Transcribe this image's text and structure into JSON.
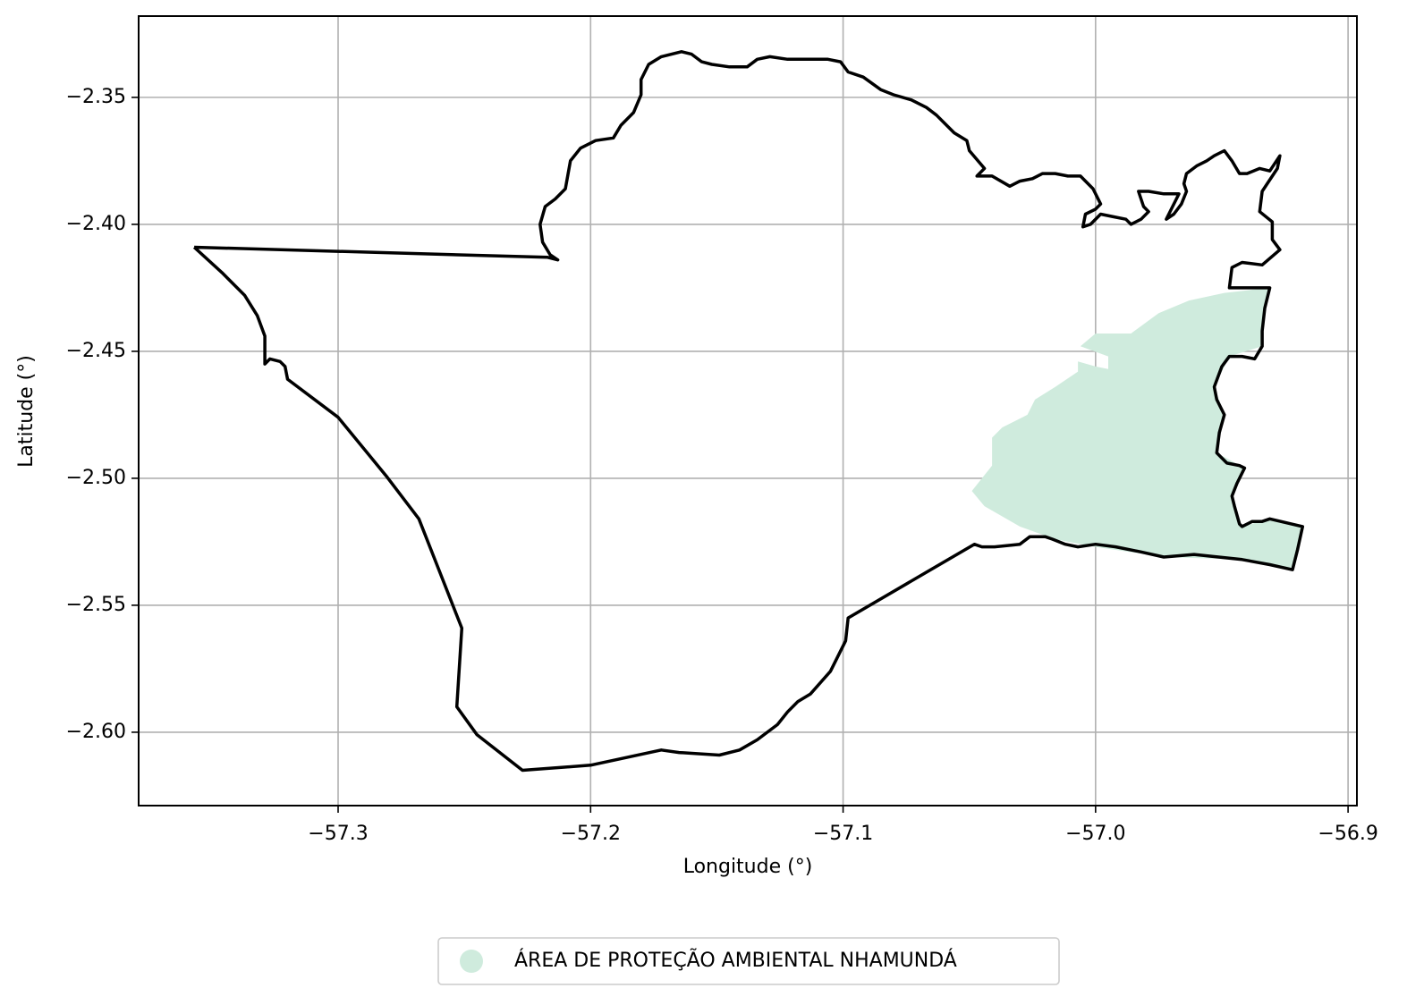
{
  "chart_data": {
    "type": "map",
    "xlabel": "Longitude (°)",
    "ylabel": "Latitude (°)",
    "xlim": [
      -57.379,
      -56.8965
    ],
    "ylim": [
      -2.6289,
      -2.318
    ],
    "xticks": [
      {
        "value": -57.3,
        "label": "−57.3"
      },
      {
        "value": -57.2,
        "label": "−57.2"
      },
      {
        "value": -57.1,
        "label": "−57.1"
      },
      {
        "value": -57.0,
        "label": "−57.0"
      },
      {
        "value": -56.9,
        "label": "−56.9"
      }
    ],
    "yticks": [
      {
        "value": -2.35,
        "label": "−2.35"
      },
      {
        "value": -2.4,
        "label": "−2.40"
      },
      {
        "value": -2.45,
        "label": "−2.45"
      },
      {
        "value": -2.5,
        "label": "−2.50"
      },
      {
        "value": -2.55,
        "label": "−2.55"
      },
      {
        "value": -2.6,
        "label": "−2.60"
      }
    ],
    "grid": true,
    "legend": "lower center",
    "layers": [
      {
        "name": "ÁREA DE PROTEÇÃO AMBIENTAL NHAMUNDÁ",
        "color": "#cfebdd",
        "fill": true,
        "x": [
          -56.949,
          -56.963,
          -56.975,
          -56.986,
          -57.0,
          -57.006,
          -56.995,
          -56.995,
          -57.0,
          -57.007,
          -57.007,
          -57.016,
          -57.024,
          -57.027,
          -57.037,
          -57.041,
          -57.041,
          -57.049,
          -57.044,
          -57.03,
          -57.016,
          -57.0,
          -56.973,
          -56.942,
          -56.922,
          -56.92,
          -56.918,
          -56.931,
          -56.942,
          -56.945,
          -56.946,
          -56.941,
          -56.952,
          -56.949,
          -56.953,
          -56.947,
          -56.934,
          -56.933,
          -56.931
        ],
        "y": [
          -2.427,
          -2.43,
          -2.435,
          -2.443,
          -2.443,
          -2.448,
          -2.452,
          -2.457,
          -2.456,
          -2.454,
          -2.458,
          -2.464,
          -2.469,
          -2.475,
          -2.48,
          -2.484,
          -2.495,
          -2.505,
          -2.511,
          -2.519,
          -2.524,
          -2.527,
          -2.531,
          -2.532,
          -2.536,
          -2.528,
          -2.519,
          -2.516,
          -2.519,
          -2.511,
          -2.507,
          -2.496,
          -2.49,
          -2.475,
          -2.464,
          -2.452,
          -2.448,
          -2.433,
          -2.425
        ]
      },
      {
        "color": "#000000",
        "fill": false,
        "x": [
          -57.357,
          -57.346,
          -57.337,
          -57.332,
          -57.329,
          -57.329,
          -57.327,
          -57.323,
          -57.321,
          -57.32,
          -57.3,
          -57.281,
          -57.268,
          -57.251,
          -57.253,
          -57.245,
          -57.227,
          -57.2,
          -57.172,
          -57.165,
          -57.149,
          -57.141,
          -57.134,
          -57.126,
          -57.122,
          -57.118,
          -57.113,
          -57.105,
          -57.099,
          -57.098,
          -57.048,
          -57.045,
          -57.04,
          -57.03,
          -57.026,
          -57.02,
          -57.017,
          -57.012,
          -57.007,
          -57.0,
          -56.992,
          -56.982,
          -56.973,
          -56.961,
          -56.942,
          -56.931,
          -56.922,
          -56.92,
          -56.918,
          -56.931,
          -56.934,
          -56.938,
          -56.942,
          -56.943,
          -56.945,
          -56.946,
          -56.944,
          -56.941,
          -56.943,
          -56.948,
          -56.952,
          -56.951,
          -56.949,
          -56.952,
          -56.953,
          -56.95,
          -56.947,
          -56.942,
          -56.937,
          -56.934,
          -56.934,
          -56.933,
          -56.931,
          -56.947,
          -56.946,
          -56.942,
          -56.934,
          -56.927,
          -56.93,
          -56.93,
          -56.935,
          -56.934,
          -56.932,
          -56.928,
          -56.927,
          -56.931,
          -56.935,
          -56.94,
          -56.943,
          -56.946,
          -56.949,
          -56.953,
          -56.956,
          -56.96,
          -56.964,
          -56.965,
          -56.964,
          -56.966,
          -56.969,
          -56.972,
          -56.97,
          -56.968,
          -56.967,
          -56.973,
          -56.979,
          -56.983,
          -56.981,
          -56.979,
          -56.982,
          -56.986,
          -56.988,
          -56.993,
          -56.998,
          -57.002,
          -57.005,
          -57.004,
          -57.0,
          -56.998,
          -57.001,
          -57.006,
          -57.011,
          -57.016,
          -57.021,
          -57.025,
          -57.03,
          -57.034,
          -57.041,
          -57.045,
          -57.047,
          -57.044,
          -57.05,
          -57.051,
          -57.056,
          -57.059,
          -57.063,
          -57.067,
          -57.073,
          -57.08,
          -57.085,
          -57.092,
          -57.098,
          -57.101,
          -57.106,
          -57.115,
          -57.122,
          -57.129,
          -57.134,
          -57.138,
          -57.145,
          -57.152,
          -57.156,
          -57.16,
          -57.164,
          -57.172,
          -57.177,
          -57.18,
          -57.18,
          -57.183,
          -57.188,
          -57.191,
          -57.198,
          -57.204,
          -57.208,
          -57.21,
          -57.214,
          -57.218,
          -57.22,
          -57.219,
          -57.216,
          -57.213,
          -57.217,
          -57.357
        ],
        "y": [
          -2.409,
          -2.419,
          -2.428,
          -2.436,
          -2.444,
          -2.455,
          -2.453,
          -2.454,
          -2.456,
          -2.461,
          -2.476,
          -2.499,
          -2.516,
          -2.559,
          -2.59,
          -2.601,
          -2.615,
          -2.613,
          -2.607,
          -2.608,
          -2.609,
          -2.607,
          -2.603,
          -2.597,
          -2.592,
          -2.588,
          -2.585,
          -2.576,
          -2.564,
          -2.555,
          -2.526,
          -2.527,
          -2.527,
          -2.526,
          -2.523,
          -2.523,
          -2.524,
          -2.526,
          -2.527,
          -2.526,
          -2.527,
          -2.529,
          -2.531,
          -2.53,
          -2.532,
          -2.534,
          -2.536,
          -2.528,
          -2.519,
          -2.516,
          -2.517,
          -2.517,
          -2.519,
          -2.518,
          -2.511,
          -2.507,
          -2.502,
          -2.496,
          -2.495,
          -2.494,
          -2.49,
          -2.482,
          -2.475,
          -2.469,
          -2.464,
          -2.456,
          -2.452,
          -2.452,
          -2.453,
          -2.448,
          -2.442,
          -2.433,
          -2.425,
          -2.425,
          -2.417,
          -2.415,
          -2.416,
          -2.41,
          -2.406,
          -2.399,
          -2.395,
          -2.387,
          -2.384,
          -2.378,
          -2.373,
          -2.379,
          -2.378,
          -2.38,
          -2.38,
          -2.375,
          -2.371,
          -2.373,
          -2.375,
          -2.377,
          -2.38,
          -2.384,
          -2.387,
          -2.392,
          -2.396,
          -2.398,
          -2.394,
          -2.39,
          -2.388,
          -2.388,
          -2.387,
          -2.387,
          -2.393,
          -2.395,
          -2.398,
          -2.4,
          -2.398,
          -2.397,
          -2.396,
          -2.4,
          -2.401,
          -2.396,
          -2.394,
          -2.392,
          -2.386,
          -2.381,
          -2.381,
          -2.38,
          -2.38,
          -2.382,
          -2.383,
          -2.385,
          -2.381,
          -2.381,
          -2.381,
          -2.378,
          -2.371,
          -2.367,
          -2.364,
          -2.361,
          -2.357,
          -2.354,
          -2.351,
          -2.349,
          -2.347,
          -2.342,
          -2.34,
          -2.336,
          -2.335,
          -2.335,
          -2.335,
          -2.334,
          -2.335,
          -2.338,
          -2.338,
          -2.337,
          -2.336,
          -2.333,
          -2.332,
          -2.334,
          -2.337,
          -2.343,
          -2.349,
          -2.356,
          -2.361,
          -2.366,
          -2.367,
          -2.37,
          -2.375,
          -2.386,
          -2.39,
          -2.393,
          -2.4,
          -2.407,
          -2.412,
          -2.414,
          -2.413,
          -2.409
        ]
      }
    ]
  }
}
